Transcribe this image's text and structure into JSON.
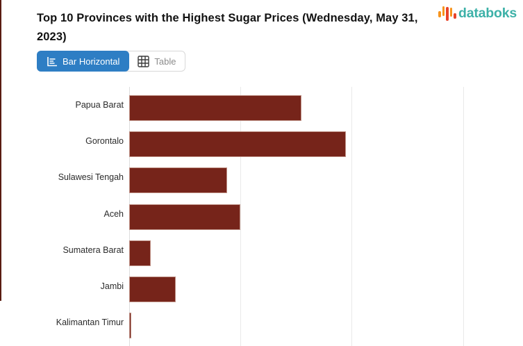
{
  "header": {
    "title": "Top 10 Provinces with the Highest Sugar Prices (Wednesday, May 31, 2023)",
    "brand": {
      "name": "databoks"
    }
  },
  "toolbar": {
    "bar_horizontal_label": "Bar Horizontal",
    "table_label": "Table",
    "active_view": "Bar Horizontal"
  },
  "chart_data": {
    "type": "bar",
    "orientation": "horizontal",
    "title": "Top 10 Provinces with the Highest Sugar Prices (Wednesday, May 31, 2023)",
    "categories": [
      "Papua Barat",
      "Gorontalo",
      "Sulawesi Tengah",
      "Aceh",
      "Sumatera Barat",
      "Jambi",
      "Kalimantan Timur"
    ],
    "values": [
      1.55,
      1.95,
      0.88,
      1.0,
      0.195,
      0.42,
      0.022
    ],
    "value_units": "gridline intervals (numeric axis tick labels are cropped out of the visible screenshot)",
    "xlabel": "",
    "ylabel": "",
    "xlim": [
      0,
      3.54
    ],
    "grid": true,
    "legend": "none",
    "bar_color": "#76241a",
    "visible_rows": 7
  },
  "colors": {
    "bar": "#76241a",
    "bar_border": "#bf9186",
    "active_button_bg": "#2e7ec4",
    "inactive_button_text": "#8b8b8b",
    "brand_teal": "#3db1a8",
    "brand_orange": "#f7941d",
    "brand_red": "#e8432a",
    "left_accent": "#5a1c11",
    "gridline": "#e9e9e9"
  },
  "icons": {
    "brand": "bar-pulse-icon",
    "bar_horizontal": "horizontal-bar-chart-icon",
    "table": "table-grid-icon"
  }
}
